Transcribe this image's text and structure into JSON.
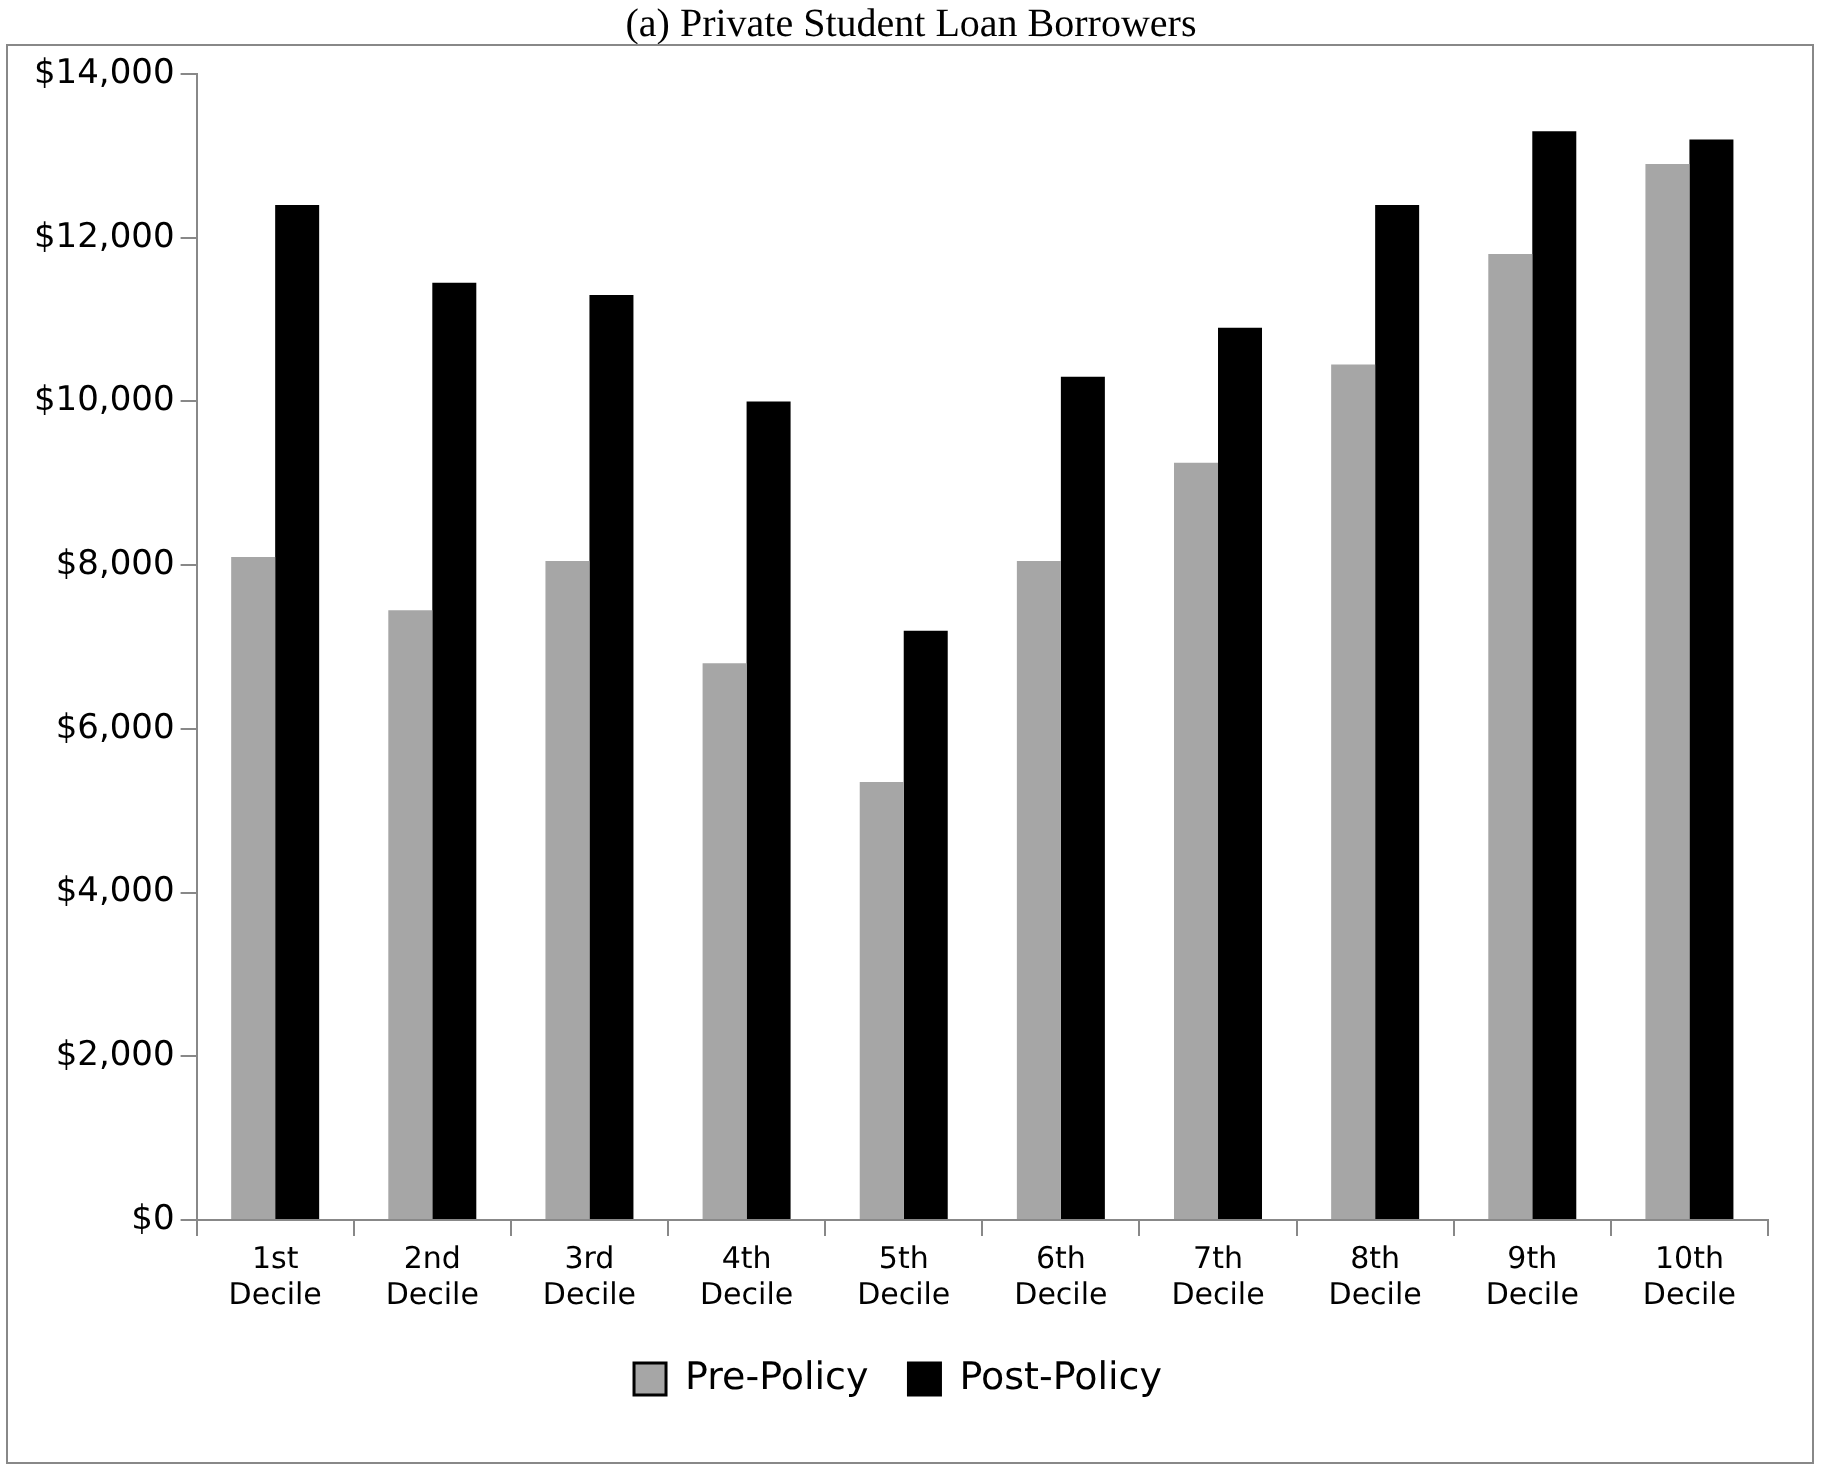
{
  "chart_data": {
    "type": "bar",
    "title": "(a) Private Student Loan Borrowers",
    "categories": [
      "1st Decile",
      "2nd Decile",
      "3rd Decile",
      "4th Decile",
      "5th Decile",
      "6th Decile",
      "7th Decile",
      "8th Decile",
      "9th Decile",
      "10th Decile"
    ],
    "series": [
      {
        "name": "Pre-Policy",
        "color": "#a6a6a6",
        "values": [
          8100,
          7450,
          8050,
          6800,
          5350,
          8050,
          9250,
          10450,
          11800,
          12900
        ]
      },
      {
        "name": "Post-Policy",
        "color": "#000000",
        "values": [
          12400,
          11450,
          11300,
          10000,
          7200,
          10300,
          10900,
          12400,
          13300,
          13200
        ]
      }
    ],
    "ylim": [
      0,
      14000
    ],
    "yticks": [
      {
        "value": 0,
        "label": "$0"
      },
      {
        "value": 2000,
        "label": "$2,000"
      },
      {
        "value": 4000,
        "label": "$4,000"
      },
      {
        "value": 6000,
        "label": "$6,000"
      },
      {
        "value": 8000,
        "label": "$8,000"
      },
      {
        "value": 10000,
        "label": "$10,000"
      },
      {
        "value": 12000,
        "label": "$12,000"
      },
      {
        "value": 14000,
        "label": "$14,000"
      }
    ],
    "legend": "bottom"
  }
}
